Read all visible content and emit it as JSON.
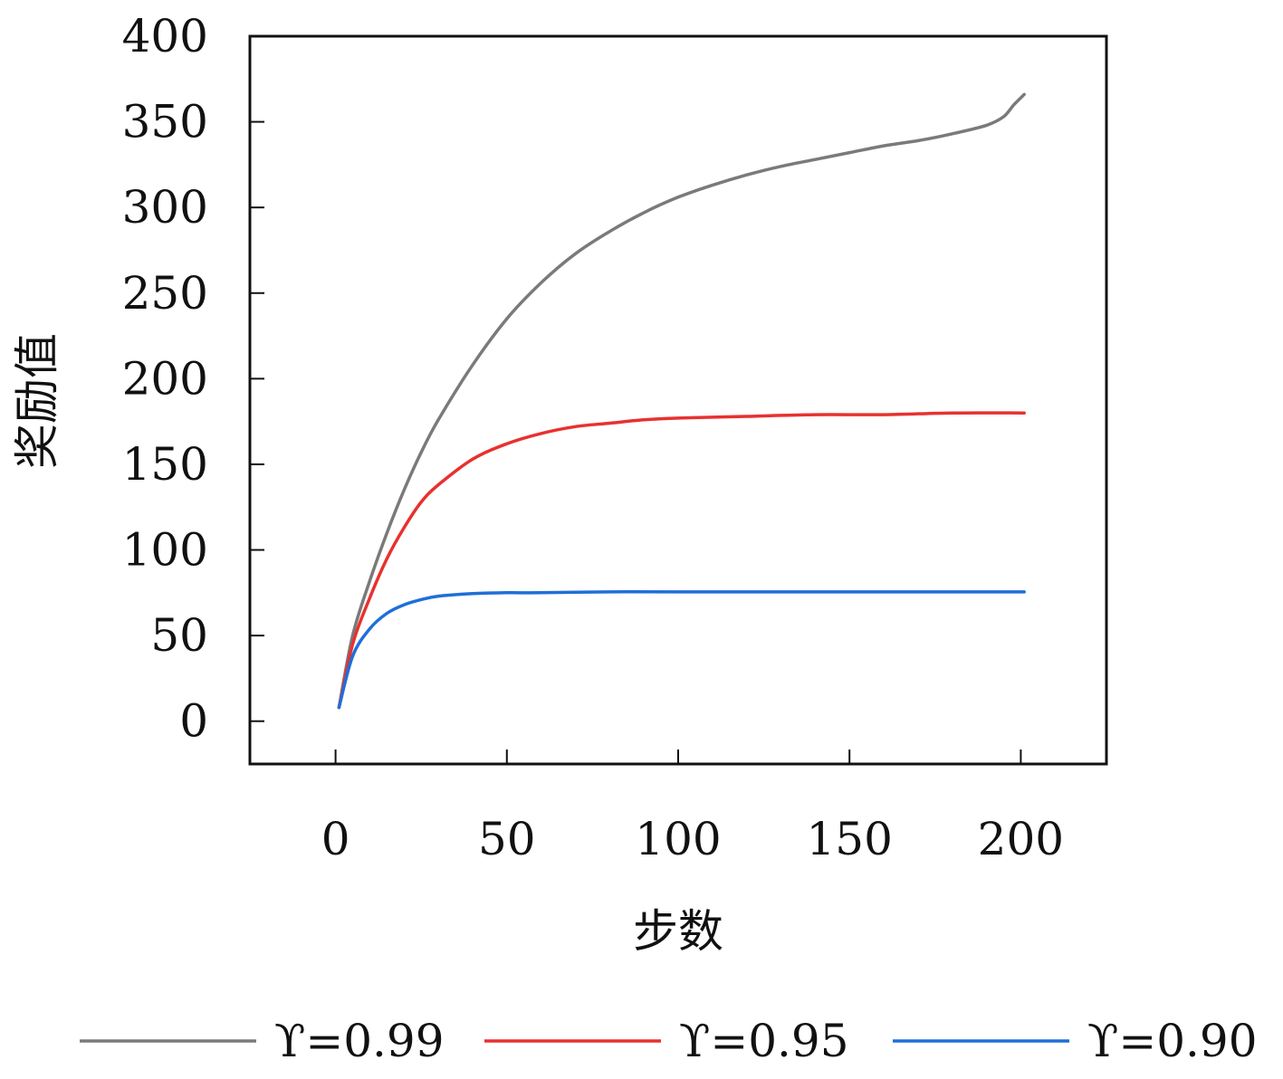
{
  "chart_data": {
    "type": "line",
    "xlabel": "步数",
    "ylabel": "奖励值",
    "xlim": [
      -25,
      225
    ],
    "ylim": [
      -25,
      400
    ],
    "xticks": [
      0,
      50,
      100,
      150,
      200
    ],
    "yticks": [
      0,
      50,
      100,
      150,
      200,
      250,
      300,
      350,
      400
    ],
    "grid": false,
    "legend_position": "bottom",
    "series": [
      {
        "name": "ϒ=0.99",
        "color": "#7a7a7a",
        "x": [
          1,
          5,
          10,
          15,
          20,
          25,
          30,
          40,
          50,
          60,
          70,
          80,
          90,
          100,
          110,
          120,
          130,
          140,
          150,
          160,
          170,
          180,
          190,
          195,
          198,
          201
        ],
        "y": [
          8,
          50,
          82,
          110,
          135,
          157,
          176,
          208,
          235,
          256,
          273,
          286,
          297,
          306,
          313,
          319,
          324,
          328,
          332,
          336,
          339,
          343,
          348,
          353,
          360,
          366
        ]
      },
      {
        "name": "ϒ=0.95",
        "color": "#e8312f",
        "x": [
          1,
          5,
          10,
          15,
          20,
          25,
          30,
          40,
          50,
          60,
          70,
          80,
          90,
          100,
          120,
          140,
          160,
          180,
          201
        ],
        "y": [
          8,
          45,
          72,
          95,
          113,
          128,
          138,
          153,
          162,
          168,
          172,
          174,
          176,
          177,
          178,
          179,
          179,
          180,
          180
        ]
      },
      {
        "name": "ϒ=0.90",
        "color": "#1f6fd8",
        "x": [
          1,
          5,
          10,
          15,
          20,
          25,
          30,
          40,
          50,
          60,
          80,
          100,
          150,
          201
        ],
        "y": [
          8,
          38,
          54,
          63,
          68,
          71,
          73,
          74.5,
          75,
          75,
          75.5,
          75.5,
          75.5,
          75.5
        ]
      }
    ]
  }
}
